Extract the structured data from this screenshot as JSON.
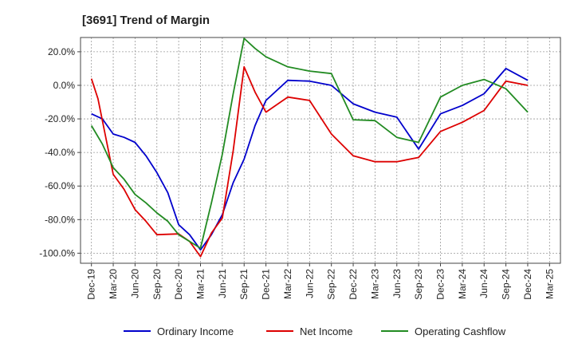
{
  "title": "[3691]  Trend of Margin",
  "chart_data": {
    "type": "line",
    "title": "[3691]  Trend of Margin",
    "xlabel": "",
    "ylabel": "",
    "x_tick_labels": [
      "Dec-19",
      "Mar-20",
      "Jun-20",
      "Sep-20",
      "Dec-20",
      "Mar-21",
      "Jun-21",
      "Sep-21",
      "Dec-21",
      "Mar-22",
      "Jun-22",
      "Sep-22",
      "Dec-22",
      "Mar-23",
      "Jun-23",
      "Sep-23",
      "Dec-23",
      "Mar-24",
      "Jun-24",
      "Sep-24",
      "Dec-24",
      "Mar-25"
    ],
    "y_tick_labels": [
      "20.0%",
      "0.0%",
      "-20.0%",
      "-40.0%",
      "-60.0%",
      "-80.0%",
      "-100.0%"
    ],
    "y_ticks": [
      20,
      0,
      -20,
      -40,
      -60,
      -80,
      -100
    ],
    "ylim": [
      -106,
      28.5
    ],
    "x_count": 22,
    "grid": true,
    "legend_position": "bottom",
    "series": [
      {
        "name": "Ordinary Income",
        "color": "#0000cc",
        "points": [
          [
            0,
            -17
          ],
          [
            0.5,
            -20
          ],
          [
            1,
            -29
          ],
          [
            1.5,
            -31
          ],
          [
            2,
            -34
          ],
          [
            2.5,
            -42
          ],
          [
            3,
            -52
          ],
          [
            3.5,
            -64
          ],
          [
            4,
            -83
          ],
          [
            4.5,
            -89
          ],
          [
            5,
            -98
          ],
          [
            5.5,
            -89
          ],
          [
            6,
            -77
          ],
          [
            6.5,
            -58
          ],
          [
            7,
            -44
          ],
          [
            7.5,
            -24
          ],
          [
            8,
            -9
          ],
          [
            9,
            3
          ],
          [
            10,
            2.5
          ],
          [
            11,
            0
          ],
          [
            12,
            -11
          ],
          [
            13,
            -16
          ],
          [
            14,
            -19
          ],
          [
            15,
            -38
          ],
          [
            16,
            -17
          ],
          [
            17,
            -12
          ],
          [
            18,
            -5
          ],
          [
            19,
            10
          ],
          [
            20,
            3
          ]
        ]
      },
      {
        "name": "Net Income",
        "color": "#dd0000",
        "points": [
          [
            0,
            4
          ],
          [
            0.3,
            -8
          ],
          [
            1,
            -53
          ],
          [
            1.5,
            -62
          ],
          [
            2,
            -74
          ],
          [
            2.5,
            -81
          ],
          [
            3,
            -89
          ],
          [
            4,
            -88.5
          ],
          [
            4.5,
            -93
          ],
          [
            5,
            -102
          ],
          [
            5.5,
            -88
          ],
          [
            6,
            -79
          ],
          [
            6.5,
            -39
          ],
          [
            7,
            11
          ],
          [
            7.5,
            -4
          ],
          [
            8,
            -16
          ],
          [
            9,
            -7
          ],
          [
            10,
            -9
          ],
          [
            11,
            -29
          ],
          [
            12,
            -42
          ],
          [
            13,
            -45.5
          ],
          [
            14,
            -45.5
          ],
          [
            15,
            -43
          ],
          [
            16,
            -27.5
          ],
          [
            17,
            -22
          ],
          [
            18,
            -15
          ],
          [
            19,
            2.5
          ],
          [
            20,
            0
          ]
        ]
      },
      {
        "name": "Operating Cashflow",
        "color": "#228b22",
        "points": [
          [
            0,
            -24
          ],
          [
            0.5,
            -35
          ],
          [
            1,
            -49
          ],
          [
            1.5,
            -56
          ],
          [
            2,
            -65
          ],
          [
            2.5,
            -70
          ],
          [
            3,
            -76
          ],
          [
            3.5,
            -81
          ],
          [
            4,
            -89
          ],
          [
            4.5,
            -93
          ],
          [
            5,
            -97
          ],
          [
            5.5,
            -70
          ],
          [
            6,
            -41
          ],
          [
            6.5,
            -5
          ],
          [
            7,
            28
          ],
          [
            7.5,
            22
          ],
          [
            8,
            17
          ],
          [
            9,
            11
          ],
          [
            10,
            8.5
          ],
          [
            11,
            7
          ],
          [
            12,
            -20.5
          ],
          [
            13,
            -21
          ],
          [
            14,
            -31
          ],
          [
            15,
            -34
          ],
          [
            16,
            -7
          ],
          [
            17,
            0
          ],
          [
            18,
            3.5
          ],
          [
            19,
            -2
          ],
          [
            20,
            -16
          ]
        ]
      }
    ]
  }
}
